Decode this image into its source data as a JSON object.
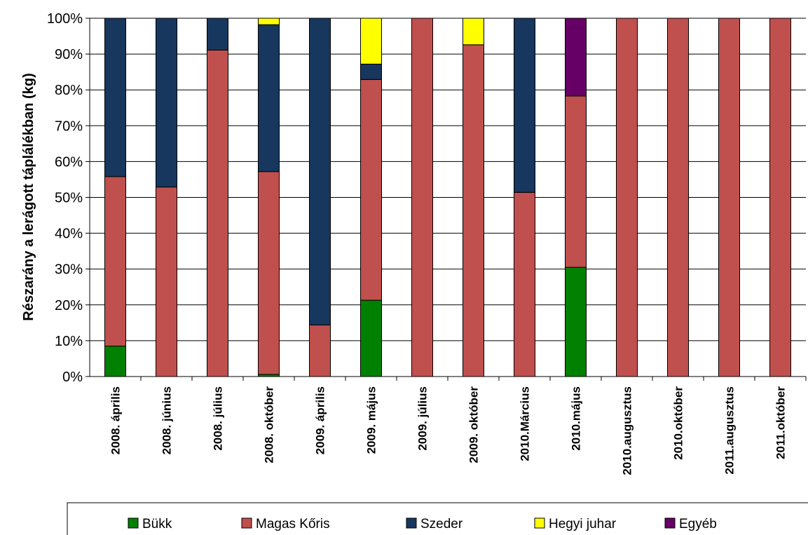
{
  "chart_data": {
    "type": "bar",
    "stacked": "percent",
    "title": "",
    "xlabel": "",
    "ylabel": "Részarány a lerágott táplálékban (kg)",
    "ylim": [
      0,
      100
    ],
    "yticks": [
      "0%",
      "10%",
      "20%",
      "30%",
      "40%",
      "50%",
      "60%",
      "70%",
      "80%",
      "90%",
      "100%"
    ],
    "grid": true,
    "legend_position": "bottom",
    "categories": [
      "2008. április",
      "2008. június",
      "2008. július",
      "2008. október",
      "2009. április",
      "2009. május",
      "2009. július",
      "2009. október",
      "2010.Március",
      "2010.május",
      "2010.augusztus",
      "2010.október",
      "2011.augusztus",
      "2011.október"
    ],
    "series": [
      {
        "name": "Bükk",
        "color": "#008000",
        "values": [
          8.5,
          0,
          0,
          0.6,
          0,
          21.3,
          0,
          0,
          0,
          30.5,
          0,
          0,
          0,
          0
        ]
      },
      {
        "name": "Magas Kőris",
        "color": "#C0504D",
        "values": [
          47.3,
          52.9,
          91.1,
          56.6,
          14.4,
          61.6,
          100,
          92.6,
          51.4,
          47.8,
          100,
          100,
          100,
          100
        ]
      },
      {
        "name": "Szeder",
        "color": "#17375E",
        "values": [
          44.2,
          47.1,
          8.9,
          41.0,
          85.6,
          4.3,
          0,
          0,
          48.6,
          0,
          0,
          0,
          0,
          0
        ]
      },
      {
        "name": "Hegyi juhar",
        "color": "#FFFF00",
        "values": [
          0,
          0,
          0,
          1.8,
          0,
          12.8,
          0,
          7.4,
          0,
          0,
          0,
          0,
          0,
          0
        ]
      },
      {
        "name": "Egyéb",
        "color": "#660066",
        "values": [
          0,
          0,
          0,
          0,
          0,
          0,
          0,
          0,
          0,
          21.7,
          0,
          0,
          0,
          0
        ]
      }
    ]
  }
}
